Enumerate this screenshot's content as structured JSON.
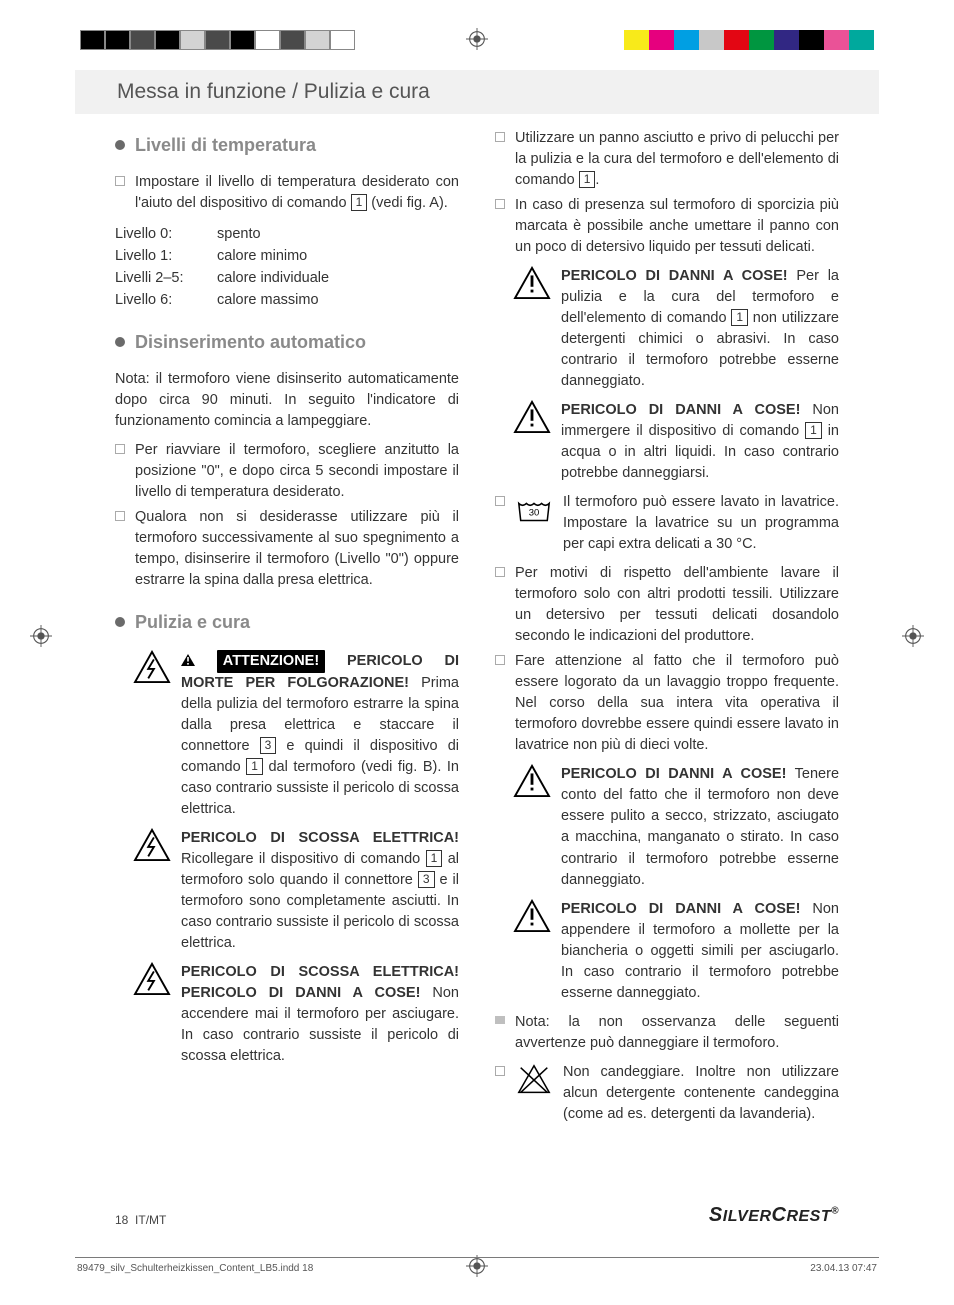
{
  "colors": {
    "text": "#333333",
    "muted_title": "#8a8a8a",
    "header_bg": "#f1f1f1",
    "dot": "#6a6a6a",
    "border": "#333333"
  },
  "print_bar_left": [
    "#000000",
    "#000000",
    "#4a4a4a",
    "#000000",
    "#d3d3d3",
    "#4a4a4a",
    "#000000",
    "#ffffff",
    "#4a4a4a",
    "#d3d3d3",
    "#ffffff"
  ],
  "print_bar_right": [
    "#f8ea1a",
    "#e6007e",
    "#009fe3",
    "#c8c8c8",
    "#e30613",
    "#009640",
    "#312783",
    "#000000",
    "#ea5297",
    "#00a99d"
  ],
  "header": "Messa in funzione / Pulizia e cura",
  "sec1_title": "Livelli di temperatura",
  "sec1_li1_a": "Impostare il livello di temperatura desiderato con l'aiuto del dispositivo di comando ",
  "sec1_li1_ref": "1",
  "sec1_li1_b": " (vedi fig. A).",
  "levels": [
    {
      "k": "Livello 0:",
      "v": "spento"
    },
    {
      "k": "Livello 1:",
      "v": "calore minimo"
    },
    {
      "k": "Livelli 2–5:",
      "v": "calore individuale"
    },
    {
      "k": "Livello 6:",
      "v": "calore massimo"
    }
  ],
  "sec2_title": "Disinserimento automatico",
  "sec2_note_label": "Nota:",
  "sec2_note": " il termoforo viene disinserito automaticamente dopo circa 90 minuti. In seguito l'indicatore di funzionamento comincia a lampeggiare.",
  "sec2_li1": "Per riavviare il termoforo, scegliere anzitutto la posizione \"0\", e dopo circa 5 secondi impostare il livello di temperatura desiderato.",
  "sec2_li2": "Qualora non si desiderasse utilizzare più il termoforo successivamente al suo spegnimento a tempo, disinserire il termoforo (Livello \"0\") oppure estrarre la spina dalla presa elettrica.",
  "sec3_title": "Pulizia e cura",
  "w1_pill": "ATTENZIONE!",
  "w1_lead": " PERICOLO DI MORTE PER FOLGORAZIONE!",
  "w1_body_a": " Prima della pulizia del termoforo estrarre la spina dalla presa elettrica e staccare il connettore ",
  "w1_ref1": "3",
  "w1_body_b": " e quindi il dispositivo di comando ",
  "w1_ref2": "1",
  "w1_body_c": " dal termoforo (vedi fig. B). In caso contrario sussiste il pericolo di scossa elettrica.",
  "w2_lead": "PERICOLO DI SCOSSA ELETTRICA!",
  "w2_body_a": " Ricollegare il dispositivo di comando ",
  "w2_ref1": "1",
  "w2_body_b": " al termoforo solo quando il connettore ",
  "w2_ref2": "3",
  "w2_body_c": " e il termoforo sono completamente asciutti. In caso contrario sussiste il pericolo di scossa elettrica.",
  "w3_lead": "PERICOLO DI SCOSSA ELETTRICA! PERICOLO DI DANNI A COSE!",
  "w3_body": " Non accendere mai il termoforo per asciugare. In caso contrario sussiste il pericolo di scossa elettrica.",
  "r_li1_a": "Utilizzare un panno asciutto e privo di pelucchi per la pulizia e la cura del termoforo e dell'elemento di comando ",
  "r_li1_ref": "1",
  "r_li1_b": ".",
  "r_li2": "In caso di presenza sul termoforo di sporcizia più marcata è possibile anche umettare il panno con un poco di detersivo liquido per tessuti delicati.",
  "w4_lead": "PERICOLO DI DANNI A COSE!",
  "w4_body_a": " Per la pulizia e la cura del termoforo e dell'elemento di comando ",
  "w4_ref": "1",
  "w4_body_b": " non utilizzare detergenti chimici o abrasivi. In caso contrario il termoforo potrebbe esserne danneggiato.",
  "w5_lead": "PERICOLO DI DANNI A COSE!",
  "w5_body_a": " Non immergere il dispositivo di comando ",
  "w5_ref": "1",
  "w5_body_b": " in acqua o in altri liquidi. In caso contrario potrebbe danneggiarsi.",
  "wash_temp": "30",
  "r_li3": "Il termoforo può essere lavato in lavatrice. Impostare la lavatrice su un programma per capi extra delicati a 30 °C.",
  "r_li4": "Per motivi di rispetto dell'ambiente lavare il termoforo solo con altri prodotti tessili. Utilizzare un detersivo per tessuti delicati dosandolo secondo le indicazioni del produttore.",
  "r_li5": "Fare attenzione al fatto che il termoforo può essere logorato da un lavaggio troppo frequente. Nel corso della sua intera vita operativa il termoforo dovrebbe essere quindi essere lavato in lavatrice non più di dieci volte.",
  "w6_lead": "PERICOLO DI DANNI A COSE!",
  "w6_body": " Tenere conto del fatto che il termoforo non deve essere pulito a secco, strizzato, asciugato a macchina, manganato o stirato. In caso contrario il termoforo potrebbe esserne danneggiato.",
  "w7_lead": "PERICOLO DI DANNI A COSE!",
  "w7_body": " Non appendere il termoforo a mollette per la biancheria o oggetti simili per asciugarlo. In caso contrario il termoforo potrebbe esserne danneggiato.",
  "r_note_label": "Nota:",
  "r_note": " la non osservanza delle seguenti avvertenze può danneggiare il termoforo.",
  "r_li6": "Non candeggiare. Inoltre non utilizzare alcun detergente contenente candeggina (come ad es. detergenti da lavanderia).",
  "page_num": "18",
  "page_lang": "IT/MT",
  "brand": "SilverCrest",
  "footer_file": "89479_silv_Schulterheizkissen_Content_LB5.indd   18",
  "footer_date": "23.04.13   07:47"
}
